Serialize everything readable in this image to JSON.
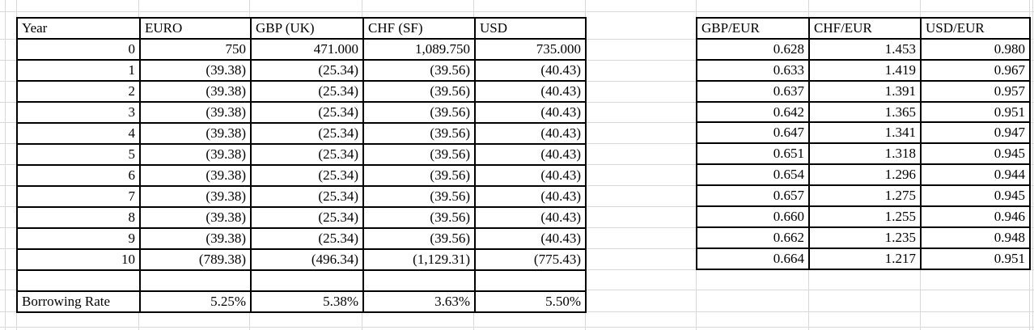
{
  "grid": {
    "line_color": "#d8d8d8"
  },
  "cashflow_table": {
    "headers": [
      "Year",
      "EURO",
      "GBP (UK)",
      "CHF (SF)",
      "USD"
    ],
    "rows": [
      [
        "0",
        "750",
        "471.000",
        "1,089.750",
        "735.000"
      ],
      [
        "1",
        "(39.38)",
        "(25.34)",
        "(39.56)",
        "(40.43)"
      ],
      [
        "2",
        "(39.38)",
        "(25.34)",
        "(39.56)",
        "(40.43)"
      ],
      [
        "3",
        "(39.38)",
        "(25.34)",
        "(39.56)",
        "(40.43)"
      ],
      [
        "4",
        "(39.38)",
        "(25.34)",
        "(39.56)",
        "(40.43)"
      ],
      [
        "5",
        "(39.38)",
        "(25.34)",
        "(39.56)",
        "(40.43)"
      ],
      [
        "6",
        "(39.38)",
        "(25.34)",
        "(39.56)",
        "(40.43)"
      ],
      [
        "7",
        "(39.38)",
        "(25.34)",
        "(39.56)",
        "(40.43)"
      ],
      [
        "8",
        "(39.38)",
        "(25.34)",
        "(39.56)",
        "(40.43)"
      ],
      [
        "9",
        "(39.38)",
        "(25.34)",
        "(39.56)",
        "(40.43)"
      ],
      [
        "10",
        "(789.38)",
        "(496.34)",
        "(1,129.31)",
        "(775.43)"
      ],
      [
        "",
        "",
        "",
        "",
        ""
      ],
      [
        "Borrowing Rate",
        "5.25%",
        "5.38%",
        "3.63%",
        "5.50%"
      ]
    ]
  },
  "fx_table": {
    "headers": [
      "GBP/EUR",
      "CHF/EUR",
      "USD/EUR"
    ],
    "rows": [
      [
        "0.628",
        "1.453",
        "0.980"
      ],
      [
        "0.633",
        "1.419",
        "0.967"
      ],
      [
        "0.637",
        "1.391",
        "0.957"
      ],
      [
        "0.642",
        "1.365",
        "0.951"
      ],
      [
        "0.647",
        "1.341",
        "0.947"
      ],
      [
        "0.651",
        "1.318",
        "0.945"
      ],
      [
        "0.654",
        "1.296",
        "0.944"
      ],
      [
        "0.657",
        "1.275",
        "0.945"
      ],
      [
        "0.660",
        "1.255",
        "0.946"
      ],
      [
        "0.662",
        "1.235",
        "0.948"
      ],
      [
        "0.664",
        "1.217",
        "0.951"
      ]
    ]
  }
}
